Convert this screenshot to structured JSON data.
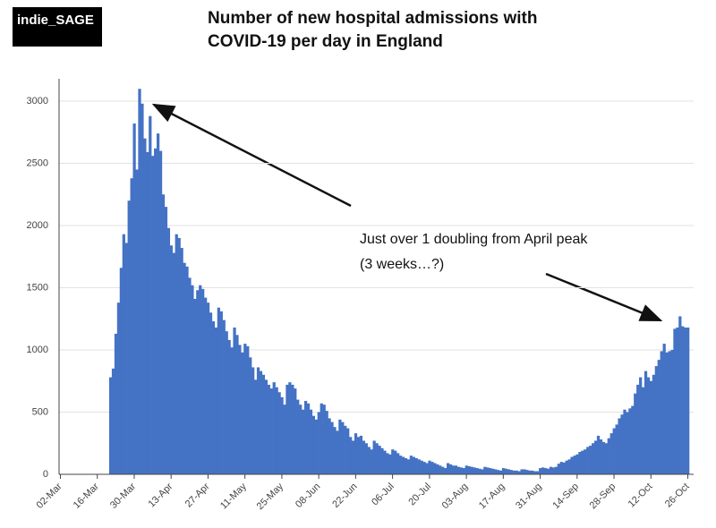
{
  "chart_data": {
    "type": "bar",
    "title": "Number of new hospital admissions with COVID-19 per day in England",
    "logo": "indie_SAGE",
    "annotations": [
      "Just over 1 doubling from April peak",
      "(3 weeks…?)"
    ],
    "color": "#4472c4",
    "grid": true,
    "ylim": [
      0,
      3180
    ],
    "yticks": [
      0,
      500,
      1000,
      1500,
      2000,
      2500,
      3000
    ],
    "categories": [
      "02-Mar",
      null,
      null,
      null,
      null,
      null,
      null,
      null,
      null,
      null,
      null,
      null,
      null,
      null,
      "16-Mar",
      null,
      null,
      null,
      null,
      null,
      null,
      null,
      null,
      null,
      null,
      null,
      null,
      null,
      "30-Mar",
      null,
      null,
      null,
      null,
      null,
      null,
      null,
      null,
      null,
      null,
      null,
      null,
      null,
      "13-Apr",
      null,
      null,
      null,
      null,
      null,
      null,
      null,
      null,
      null,
      null,
      null,
      null,
      null,
      "27-Apr",
      null,
      null,
      null,
      null,
      null,
      null,
      null,
      null,
      null,
      null,
      null,
      null,
      null,
      "11-May",
      null,
      null,
      null,
      null,
      null,
      null,
      null,
      null,
      null,
      null,
      null,
      null,
      null,
      "25-May",
      null,
      null,
      null,
      null,
      null,
      null,
      null,
      null,
      null,
      null,
      null,
      null,
      null,
      "08-Jun",
      null,
      null,
      null,
      null,
      null,
      null,
      null,
      null,
      null,
      null,
      null,
      null,
      null,
      "22-Jun",
      null,
      null,
      null,
      null,
      null,
      null,
      null,
      null,
      null,
      null,
      null,
      null,
      null,
      "06-Jul",
      null,
      null,
      null,
      null,
      null,
      null,
      null,
      null,
      null,
      null,
      null,
      null,
      null,
      "20-Jul",
      null,
      null,
      null,
      null,
      null,
      null,
      null,
      null,
      null,
      null,
      null,
      null,
      null,
      "03-Aug",
      null,
      null,
      null,
      null,
      null,
      null,
      null,
      null,
      null,
      null,
      null,
      null,
      null,
      "17-Aug",
      null,
      null,
      null,
      null,
      null,
      null,
      null,
      null,
      null,
      null,
      null,
      null,
      null,
      "31-Aug",
      null,
      null,
      null,
      null,
      null,
      null,
      null,
      null,
      null,
      null,
      null,
      null,
      null,
      "14-Sep",
      null,
      null,
      null,
      null,
      null,
      null,
      null,
      null,
      null,
      null,
      null,
      null,
      null,
      "28-Sep",
      null,
      null,
      null,
      null,
      null,
      null,
      null,
      null,
      null,
      null,
      null,
      null,
      null,
      "12-Oct",
      null,
      null,
      null,
      null,
      null,
      null,
      null,
      null,
      null,
      null,
      null,
      null,
      null,
      "26-Oct"
    ],
    "values": [
      null,
      null,
      null,
      null,
      null,
      null,
      null,
      null,
      null,
      null,
      null,
      null,
      null,
      null,
      null,
      null,
      null,
      null,
      null,
      780,
      850,
      1130,
      1380,
      1660,
      1930,
      1860,
      2200,
      2380,
      2820,
      2450,
      3099,
      2980,
      2700,
      2590,
      2880,
      2560,
      2620,
      2740,
      2600,
      2250,
      2150,
      1980,
      1840,
      1780,
      1930,
      1900,
      1820,
      1700,
      1670,
      1580,
      1520,
      1410,
      1480,
      1520,
      1490,
      1420,
      1380,
      1300,
      1230,
      1180,
      1340,
      1310,
      1240,
      1150,
      1080,
      1020,
      1180,
      1120,
      1040,
      980,
      1050,
      1030,
      940,
      860,
      760,
      860,
      830,
      800,
      760,
      720,
      690,
      740,
      700,
      660,
      620,
      560,
      720,
      740,
      720,
      690,
      600,
      560,
      520,
      590,
      570,
      520,
      470,
      440,
      500,
      570,
      560,
      510,
      450,
      420,
      380,
      350,
      440,
      420,
      390,
      370,
      300,
      270,
      330,
      300,
      310,
      270,
      250,
      220,
      200,
      270,
      250,
      230,
      210,
      190,
      170,
      160,
      200,
      190,
      170,
      150,
      140,
      130,
      120,
      150,
      140,
      130,
      120,
      110,
      100,
      90,
      110,
      100,
      90,
      80,
      70,
      60,
      50,
      90,
      80,
      70,
      70,
      60,
      55,
      50,
      70,
      65,
      60,
      55,
      50,
      45,
      40,
      60,
      55,
      50,
      45,
      40,
      35,
      30,
      50,
      45,
      40,
      35,
      30,
      30,
      25,
      40,
      40,
      35,
      30,
      30,
      25,
      25,
      50,
      55,
      50,
      45,
      60,
      55,
      60,
      85,
      100,
      95,
      110,
      120,
      140,
      150,
      160,
      180,
      190,
      200,
      220,
      230,
      250,
      270,
      310,
      280,
      260,
      250,
      290,
      330,
      370,
      400,
      450,
      480,
      520,
      500,
      530,
      550,
      650,
      720,
      780,
      700,
      830,
      780,
      750,
      800,
      870,
      920,
      990,
      1050,
      980,
      990,
      1000,
      1170,
      1180,
      1270,
      1190,
      1180,
      1180
    ]
  }
}
